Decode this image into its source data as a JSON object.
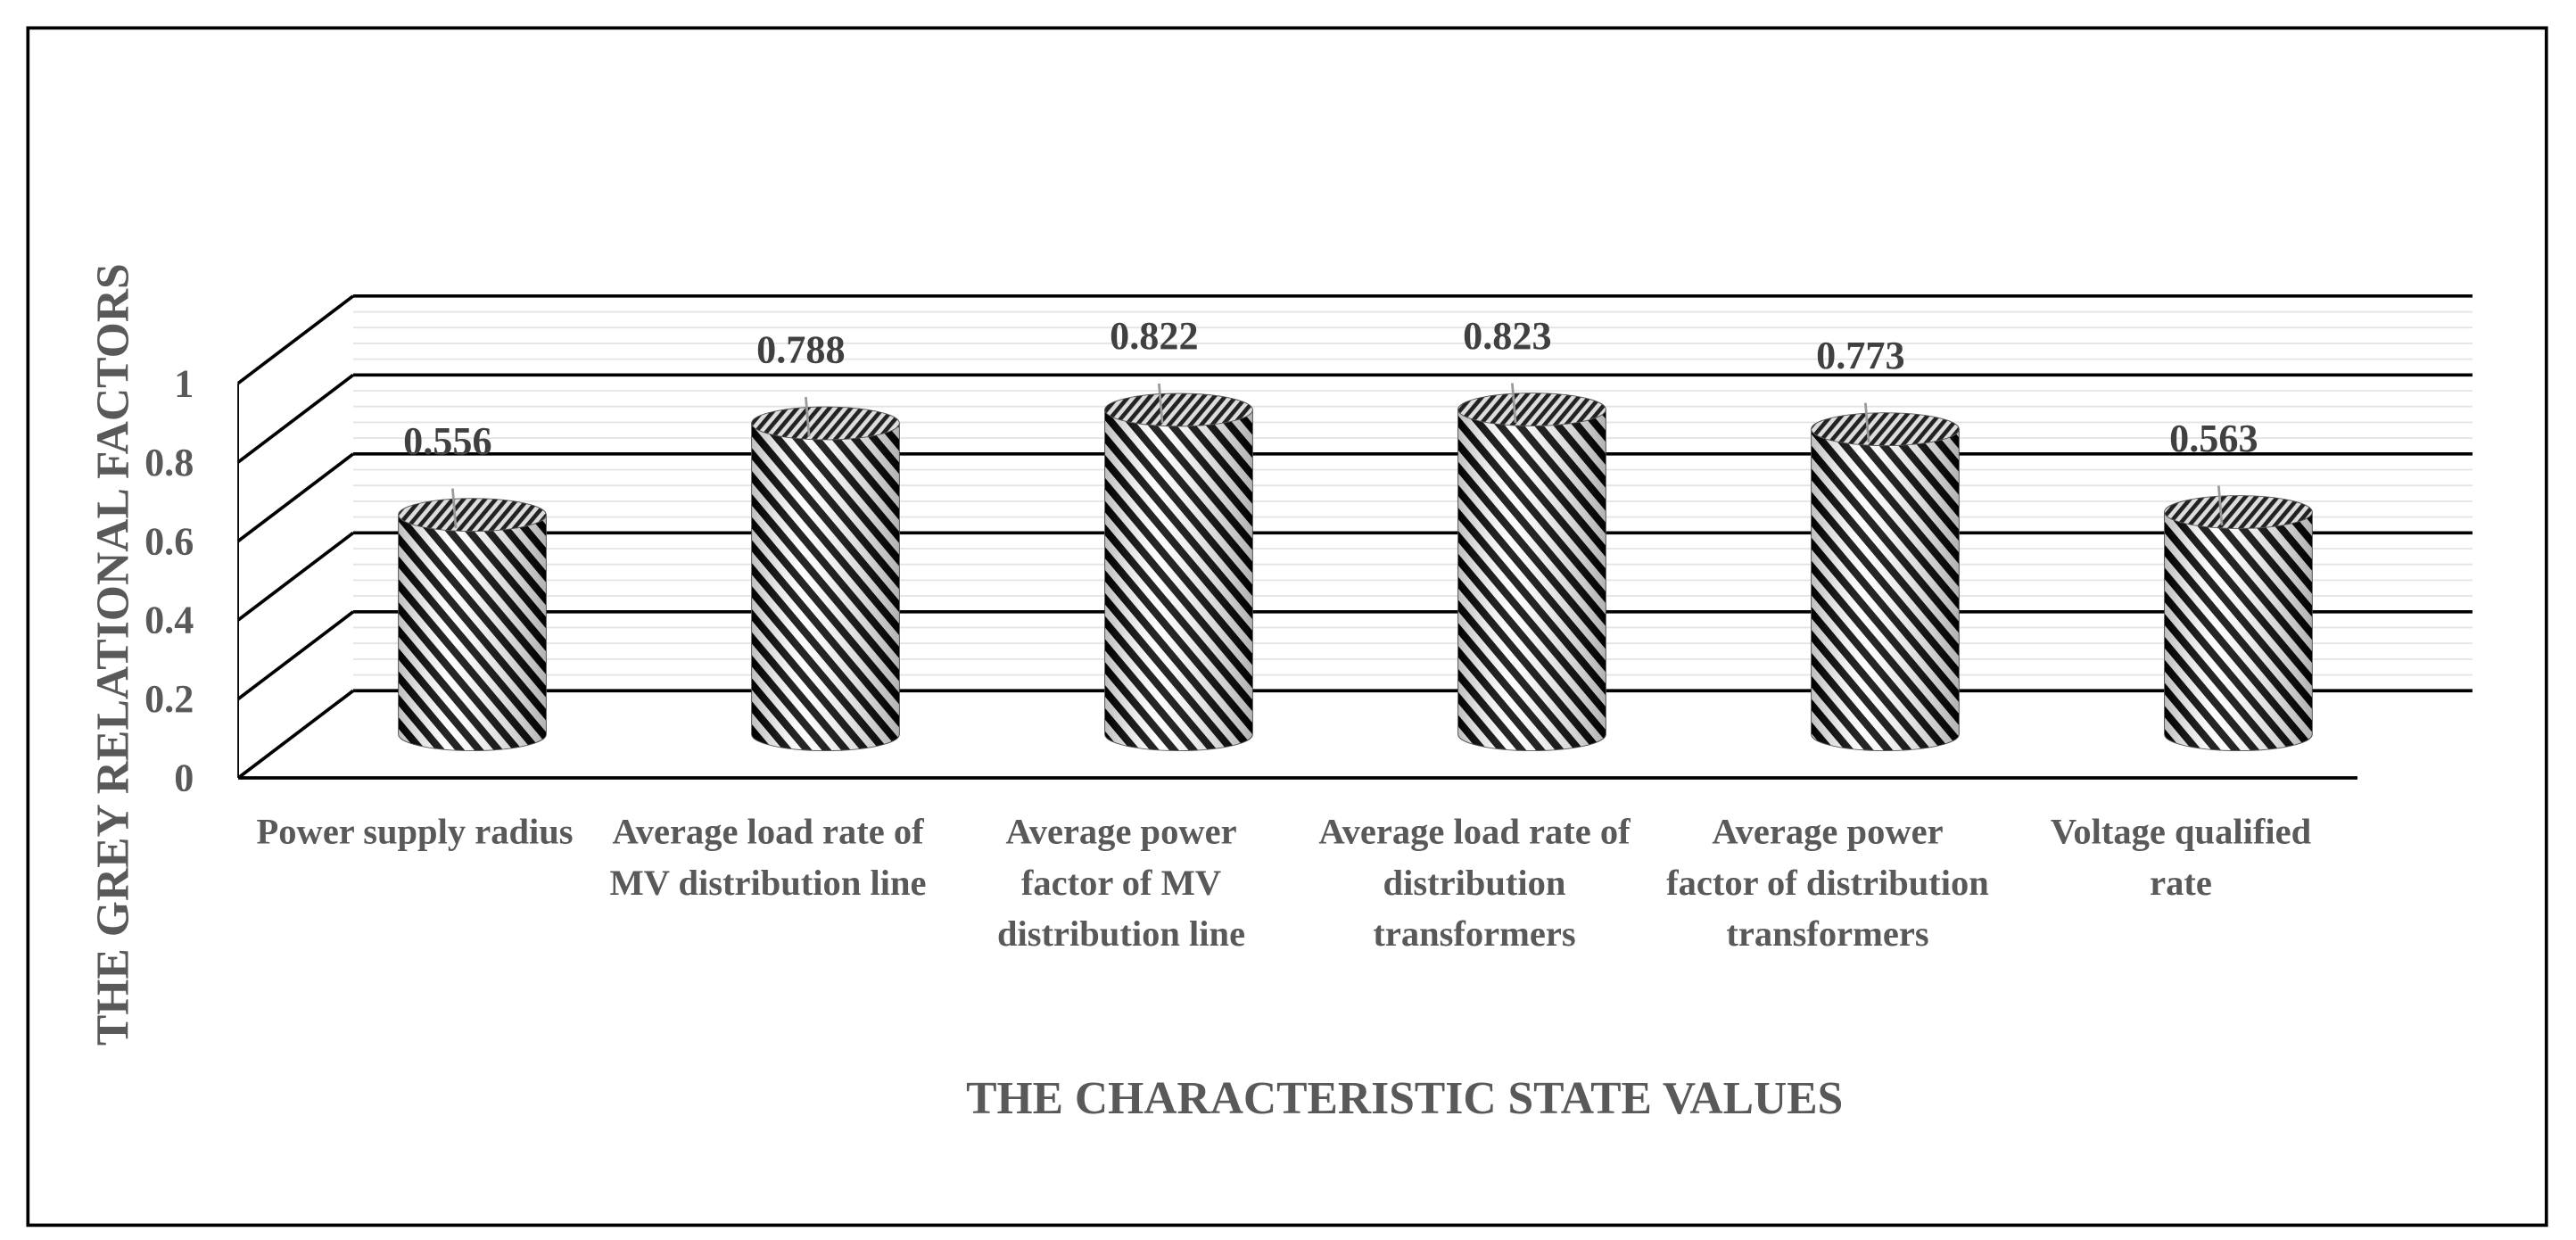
{
  "chart_data": {
    "type": "bar3d",
    "x_label": "THE CHARACTERISTIC STATE VALUES",
    "y_label": "THE GREY RELATIONAL FACTORS",
    "categories": [
      "Power supply radius",
      "Average load rate of MV distribution line",
      "Average power factor of MV distribution line",
      "Average load rate of distribution transformers",
      "Average power factor of distribution transformers",
      "Voltage qualified rate"
    ],
    "values": [
      0.556,
      0.788,
      0.822,
      0.823,
      0.773,
      0.563
    ],
    "color": "#000000",
    "ylim": [
      0,
      1
    ],
    "yticks": [
      0,
      0.2,
      0.4,
      0.6,
      0.8,
      1
    ],
    "grid": true
  }
}
